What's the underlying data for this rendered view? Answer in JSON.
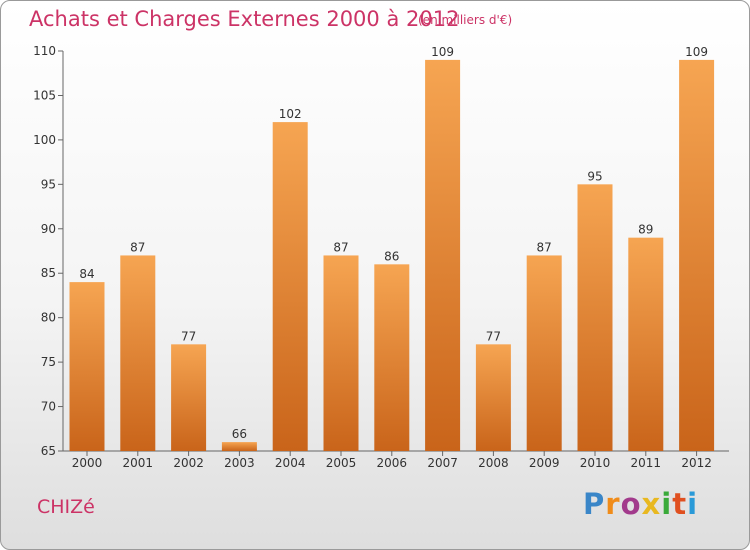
{
  "header": {
    "title": "Achats et Charges Externes 2000 à 2012",
    "subtitle": "(en milliers d'€)"
  },
  "footer": {
    "commune": "CHIZé",
    "logo_letters": [
      "P",
      "r",
      "o",
      "x",
      "i",
      "t",
      "i"
    ],
    "logo_colors": [
      "#3a86c8",
      "#f08c1a",
      "#a23a8c",
      "#e8b820",
      "#3aaa3a",
      "#e05020",
      "#2a9ad8"
    ]
  },
  "colors": {
    "bar_top": "#f6a552",
    "bar_bottom": "#c9641a",
    "title": "#cc3366",
    "axis": "#666666"
  },
  "chart_data": {
    "type": "bar",
    "categories": [
      "2000",
      "2001",
      "2002",
      "2003",
      "2004",
      "2005",
      "2006",
      "2007",
      "2008",
      "2009",
      "2010",
      "2011",
      "2012"
    ],
    "values": [
      84,
      87,
      77,
      66,
      102,
      87,
      86,
      109,
      77,
      87,
      95,
      89,
      109
    ],
    "ylim": [
      65,
      110
    ],
    "yticks": [
      65,
      70,
      75,
      80,
      85,
      90,
      95,
      100,
      105,
      110
    ],
    "grid": false,
    "legend": "none"
  }
}
